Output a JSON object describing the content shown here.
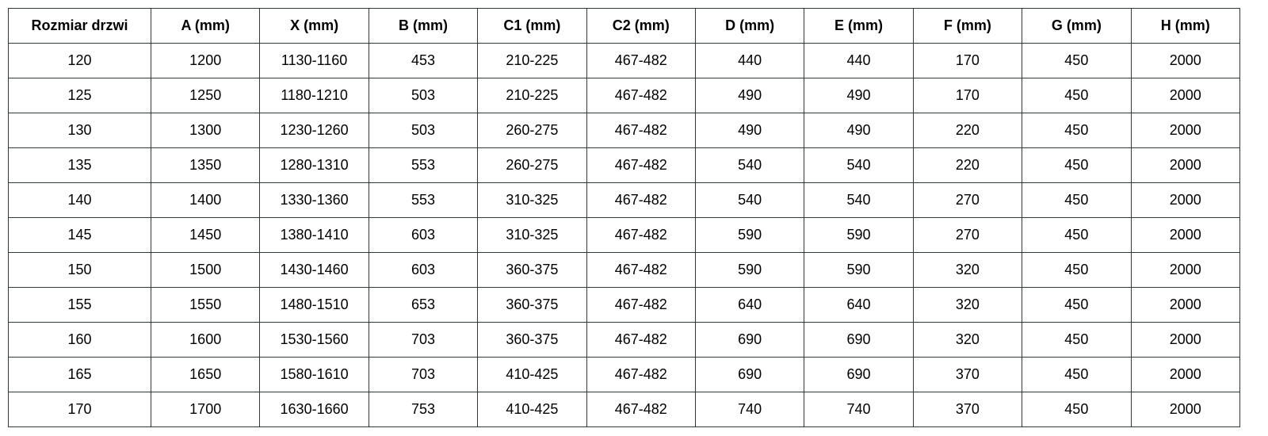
{
  "table": {
    "header": [
      "Rozmiar drzwi",
      "A (mm)",
      "X (mm)",
      "B (mm)",
      "C1 (mm)",
      "C2 (mm)",
      "D (mm)",
      "E (mm)",
      "F (mm)",
      "G (mm)",
      "H (mm)"
    ],
    "rows": [
      [
        "120",
        "1200",
        "1130-1160",
        "453",
        "210-225",
        "467-482",
        "440",
        "440",
        "170",
        "450",
        "2000"
      ],
      [
        "125",
        "1250",
        "1180-1210",
        "503",
        "210-225",
        "467-482",
        "490",
        "490",
        "170",
        "450",
        "2000"
      ],
      [
        "130",
        "1300",
        "1230-1260",
        "503",
        "260-275",
        "467-482",
        "490",
        "490",
        "220",
        "450",
        "2000"
      ],
      [
        "135",
        "1350",
        "1280-1310",
        "553",
        "260-275",
        "467-482",
        "540",
        "540",
        "220",
        "450",
        "2000"
      ],
      [
        "140",
        "1400",
        "1330-1360",
        "553",
        "310-325",
        "467-482",
        "540",
        "540",
        "270",
        "450",
        "2000"
      ],
      [
        "145",
        "1450",
        "1380-1410",
        "603",
        "310-325",
        "467-482",
        "590",
        "590",
        "270",
        "450",
        "2000"
      ],
      [
        "150",
        "1500",
        "1430-1460",
        "603",
        "360-375",
        "467-482",
        "590",
        "590",
        "320",
        "450",
        "2000"
      ],
      [
        "155",
        "1550",
        "1480-1510",
        "653",
        "360-375",
        "467-482",
        "640",
        "640",
        "320",
        "450",
        "2000"
      ],
      [
        "160",
        "1600",
        "1530-1560",
        "703",
        "360-375",
        "467-482",
        "690",
        "690",
        "320",
        "450",
        "2000"
      ],
      [
        "165",
        "1650",
        "1580-1610",
        "703",
        "410-425",
        "467-482",
        "690",
        "690",
        "370",
        "450",
        "2000"
      ],
      [
        "170",
        "1700",
        "1630-1660",
        "753",
        "410-425",
        "467-482",
        "740",
        "740",
        "370",
        "450",
        "2000"
      ]
    ]
  }
}
